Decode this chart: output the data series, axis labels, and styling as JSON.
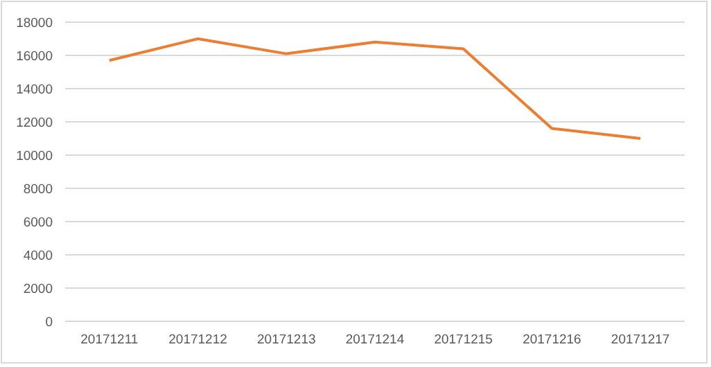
{
  "chart_data": {
    "type": "line",
    "categories": [
      "20171211",
      "20171212",
      "20171213",
      "20171214",
      "20171215",
      "20171216",
      "20171217"
    ],
    "series": [
      {
        "color": "#ed7d31",
        "values": [
          15700,
          17000,
          16100,
          16800,
          16400,
          11600,
          11000
        ]
      }
    ],
    "ylim": [
      0,
      18000
    ],
    "yticks": [
      0,
      2000,
      4000,
      6000,
      8000,
      10000,
      12000,
      14000,
      16000,
      18000
    ],
    "grid": "y",
    "marker": "none",
    "line_style": "solid"
  }
}
